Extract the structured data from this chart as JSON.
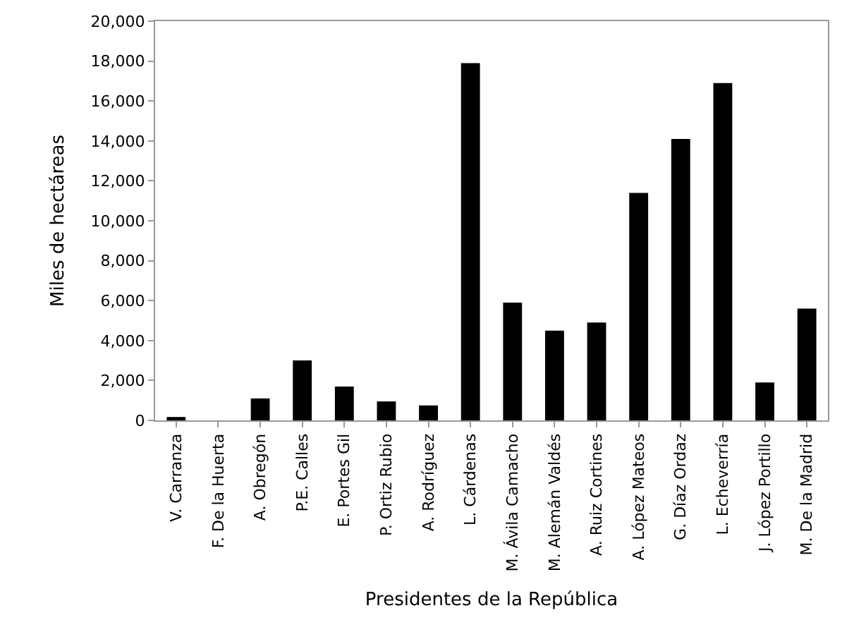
{
  "chart_data": {
    "type": "bar",
    "xlabel": "Presidentes de la República",
    "ylabel": "Miles de hectáreas",
    "categories": [
      "V. Carranza",
      "F. De la Huerta",
      "A. Obregón",
      "P.E. Calles",
      "E. Portes Gil",
      "P. Ortiz Rubio",
      "A. Rodríguez",
      "L. Cárdenas",
      "M. Ávila Camacho",
      "M. Alemán Valdés",
      "A. Ruiz Cortines",
      "A. López Mateos",
      "G. Díaz Ordaz",
      "L. Echeverría",
      "J. López Portillo",
      "M. De la Madrid"
    ],
    "values": [
      170,
      0,
      1100,
      3000,
      1700,
      950,
      750,
      17900,
      5900,
      4500,
      4900,
      11400,
      14100,
      16900,
      1900,
      5600
    ],
    "color": "#000000",
    "ylim": [
      0,
      20000
    ],
    "yticks": [
      {
        "value": 0,
        "label": "0"
      },
      {
        "value": 2000,
        "label": "2,000"
      },
      {
        "value": 4000,
        "label": "4,000"
      },
      {
        "value": 6000,
        "label": "6,000"
      },
      {
        "value": 8000,
        "label": "8,000"
      },
      {
        "value": 10000,
        "label": "10,000"
      },
      {
        "value": 12000,
        "label": "12,000"
      },
      {
        "value": 14000,
        "label": "14,000"
      },
      {
        "value": 16000,
        "label": "16,000"
      },
      {
        "value": 18000,
        "label": "18,000"
      },
      {
        "value": 20000,
        "label": "20,000"
      }
    ]
  }
}
